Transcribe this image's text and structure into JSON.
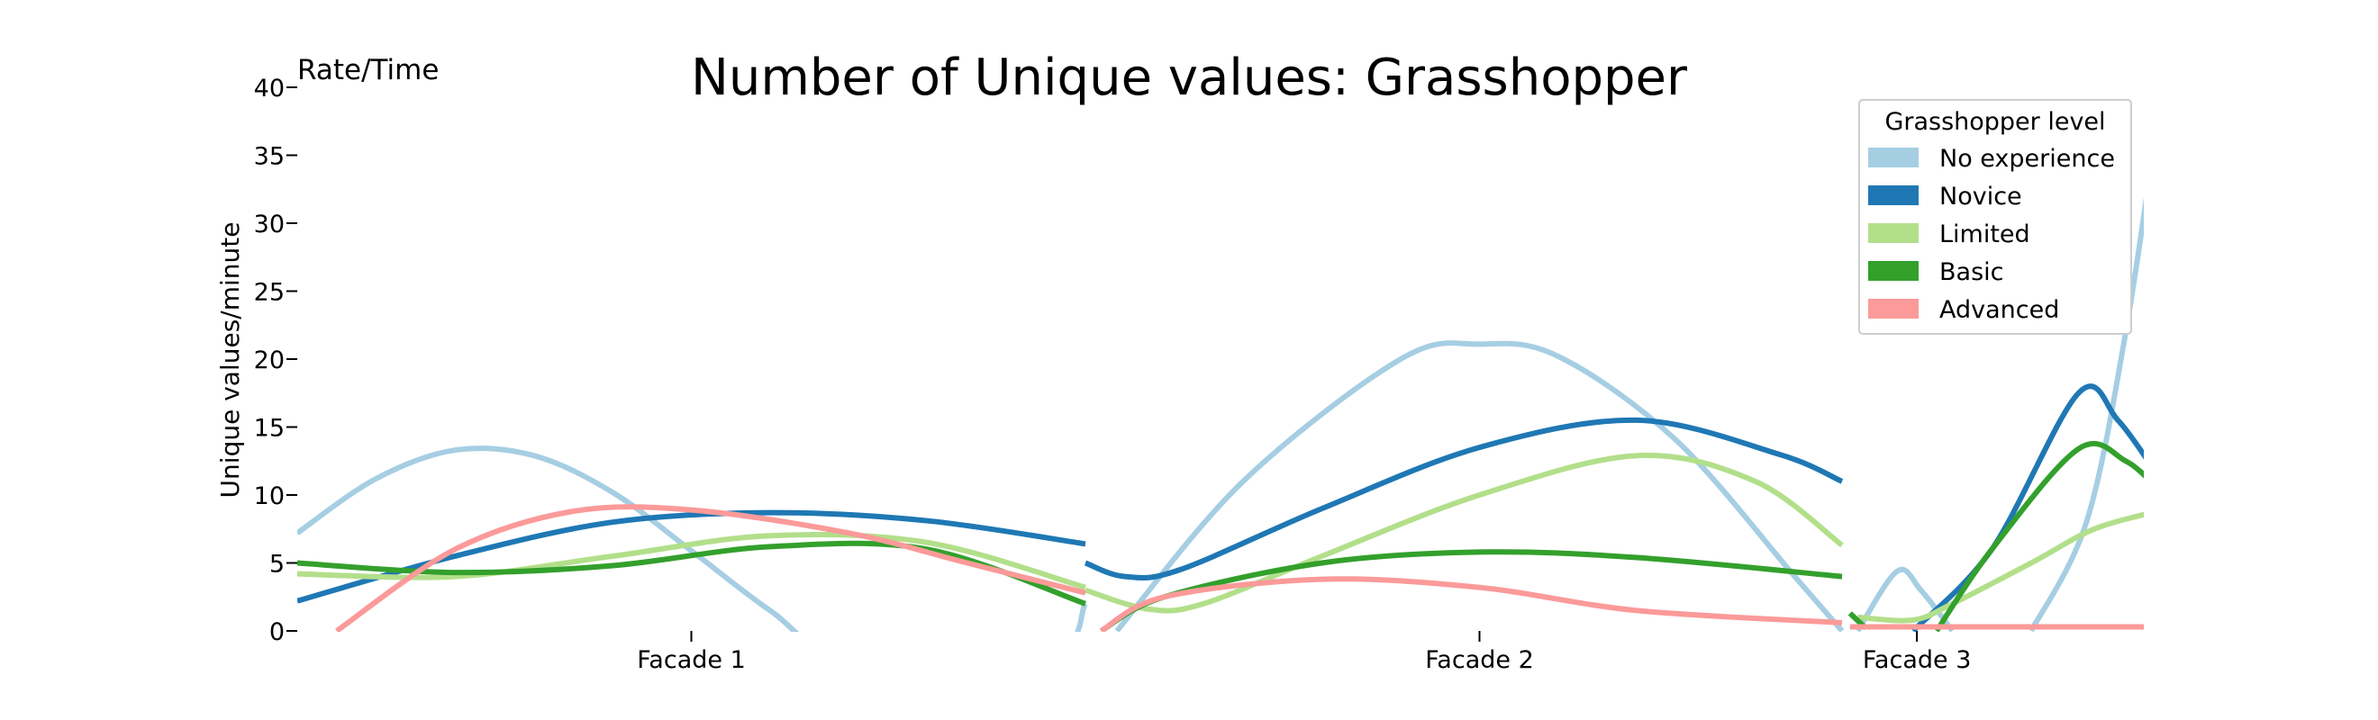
{
  "chart_data": {
    "type": "line",
    "title": "Number of Unique values: Grasshopper",
    "corner_label": "Rate/Time",
    "ylabel": "Unique values/minute",
    "xlabel": "",
    "ylim": [
      0,
      40
    ],
    "yticks": [
      0,
      5,
      10,
      15,
      20,
      25,
      30,
      35,
      40
    ],
    "grid": false,
    "legend": {
      "title": "Grasshopper level",
      "placement": "top-right"
    },
    "categories": [
      "Facade 1",
      "Facade 2",
      "Facade 3"
    ],
    "series": [
      {
        "name": "No experience",
        "color": "#a6cee3",
        "segments": [
          [
            [
              0,
              7.2
            ],
            [
              0.1,
              11.2
            ],
            [
              0.2,
              13.3
            ],
            [
              0.3,
              12.9
            ],
            [
              0.4,
              10.2
            ],
            [
              0.5,
              5.9
            ],
            [
              0.6,
              1.5
            ],
            [
              0.7,
              -2
            ],
            [
              0.95,
              -2
            ],
            [
              1,
              2
            ]
          ],
          [
            [
              1.04,
              0
            ],
            [
              1.2,
              11
            ],
            [
              1.4,
              20
            ],
            [
              1.5,
              21.1
            ],
            [
              1.6,
              20.2
            ],
            [
              1.75,
              14
            ],
            [
              1.9,
              4
            ],
            [
              1.96,
              0
            ]
          ],
          [
            [
              1.98,
              0
            ],
            [
              2.03,
              4.4
            ],
            [
              2.06,
              3
            ],
            [
              2.1,
              0
            ]
          ],
          [
            [
              2.2,
              0
            ],
            [
              2.27,
              8
            ],
            [
              2.32,
              22
            ],
            [
              2.36,
              37.5
            ]
          ]
        ]
      },
      {
        "name": "Novice",
        "color": "#1f78b4",
        "segments": [
          [
            [
              0,
              2.2
            ],
            [
              0.2,
              5.5
            ],
            [
              0.4,
              8
            ],
            [
              0.6,
              8.7
            ],
            [
              0.8,
              8.1
            ],
            [
              1,
              6.4
            ]
          ],
          [
            [
              1,
              5
            ],
            [
              1.05,
              4
            ],
            [
              1.12,
              4.5
            ],
            [
              1.3,
              9
            ],
            [
              1.5,
              13.5
            ],
            [
              1.7,
              15.5
            ],
            [
              1.88,
              13
            ],
            [
              1.96,
              11
            ]
          ],
          [
            [
              2.05,
              0
            ],
            [
              2.15,
              6
            ],
            [
              2.26,
              17.5
            ],
            [
              2.31,
              15.5
            ],
            [
              2.36,
              11.5
            ]
          ]
        ]
      },
      {
        "name": "Limited",
        "color": "#b2df8a",
        "segments": [
          [
            [
              0,
              4.2
            ],
            [
              0.2,
              4
            ],
            [
              0.4,
              5.5
            ],
            [
              0.6,
              7
            ],
            [
              0.8,
              6.5
            ],
            [
              1,
              3.2
            ]
          ],
          [
            [
              1,
              3
            ],
            [
              1.08,
              1.6
            ],
            [
              1.15,
              2
            ],
            [
              1.3,
              5.5
            ],
            [
              1.5,
              10
            ],
            [
              1.7,
              12.9
            ],
            [
              1.85,
              11
            ],
            [
              1.96,
              6.3
            ]
          ],
          [
            [
              1.98,
              1
            ],
            [
              2.05,
              0.8
            ],
            [
              2.1,
              2
            ],
            [
              2.2,
              5
            ],
            [
              2.28,
              7.5
            ],
            [
              2.36,
              8.8
            ]
          ]
        ]
      },
      {
        "name": "Basic",
        "color": "#33a02c",
        "segments": [
          [
            [
              0,
              5
            ],
            [
              0.2,
              4.3
            ],
            [
              0.4,
              4.8
            ],
            [
              0.6,
              6.2
            ],
            [
              0.8,
              6
            ],
            [
              1,
              2
            ]
          ],
          [
            [
              1.02,
              0
            ],
            [
              1.1,
              2.5
            ],
            [
              1.3,
              5
            ],
            [
              1.5,
              5.8
            ],
            [
              1.7,
              5.4
            ],
            [
              1.96,
              4
            ]
          ],
          [
            [
              1.97,
              1.3
            ],
            [
              1.99,
              0.2
            ]
          ],
          [
            [
              2.08,
              0
            ],
            [
              2.15,
              6
            ],
            [
              2.26,
              13.4
            ],
            [
              2.32,
              12.5
            ],
            [
              2.36,
              10.5
            ]
          ]
        ]
      },
      {
        "name": "Advanced",
        "color": "#fb9a99",
        "segments": [
          [
            [
              0.05,
              0
            ],
            [
              0.2,
              6
            ],
            [
              0.35,
              8.8
            ],
            [
              0.5,
              8.9
            ],
            [
              0.7,
              7.2
            ],
            [
              0.85,
              5
            ],
            [
              1,
              2.8
            ]
          ],
          [
            [
              1.02,
              0
            ],
            [
              1.1,
              2.5
            ],
            [
              1.3,
              3.8
            ],
            [
              1.5,
              3.2
            ],
            [
              1.7,
              1.5
            ],
            [
              1.96,
              0.6
            ]
          ],
          [
            [
              1.97,
              0.3
            ],
            [
              2.36,
              0.3
            ]
          ]
        ]
      }
    ]
  }
}
